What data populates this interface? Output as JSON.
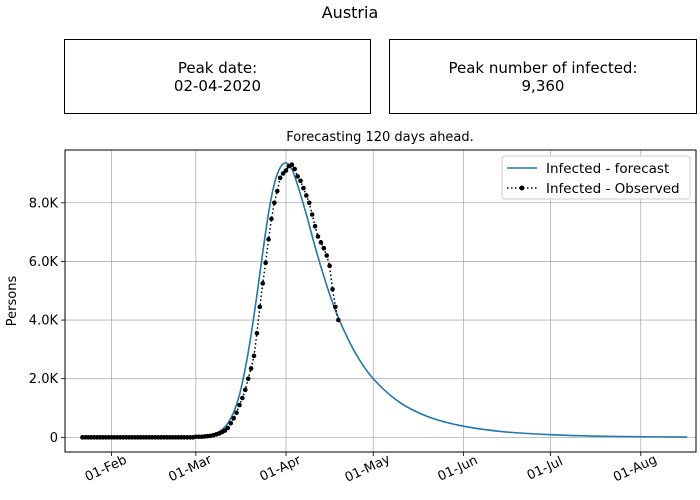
{
  "figure": {
    "title": "Austria",
    "peak_date_label": "Peak date:",
    "peak_date_value": "02-04-2020",
    "peak_infected_label": "Peak number of infected:",
    "peak_infected_value": "9,360"
  },
  "chart_data": {
    "type": "line",
    "title": "Forecasting 120 days ahead.",
    "xlabel": "",
    "ylabel": "Persons",
    "x_type": "date",
    "xlim": [
      "2020-01-16",
      "2020-08-20"
    ],
    "ylim": [
      -500,
      9800
    ],
    "grid": true,
    "legend_position": "top-right",
    "x_ticks": [
      {
        "date": "2020-02-01",
        "label": "01-Feb"
      },
      {
        "date": "2020-03-01",
        "label": "01-Mar"
      },
      {
        "date": "2020-04-01",
        "label": "01-Apr"
      },
      {
        "date": "2020-05-01",
        "label": "01-May"
      },
      {
        "date": "2020-06-01",
        "label": "01-Jun"
      },
      {
        "date": "2020-07-01",
        "label": "01-Jul"
      },
      {
        "date": "2020-08-01",
        "label": "01-Aug"
      }
    ],
    "y_ticks": [
      {
        "value": 0,
        "label": "0"
      },
      {
        "value": 2000,
        "label": "2.0K"
      },
      {
        "value": 4000,
        "label": "4.0K"
      },
      {
        "value": 6000,
        "label": "6.0K"
      },
      {
        "value": 8000,
        "label": "8.0K"
      }
    ],
    "series": [
      {
        "name": "Infected - forecast",
        "color": "#1f77b4",
        "style": "solid",
        "points": [
          [
            "2020-01-22",
            0
          ],
          [
            "2020-02-15",
            0
          ],
          [
            "2020-02-25",
            5
          ],
          [
            "2020-03-01",
            20
          ],
          [
            "2020-03-05",
            60
          ],
          [
            "2020-03-08",
            140
          ],
          [
            "2020-03-10",
            260
          ],
          [
            "2020-03-12",
            480
          ],
          [
            "2020-03-14",
            850
          ],
          [
            "2020-03-16",
            1450
          ],
          [
            "2020-03-18",
            2350
          ],
          [
            "2020-03-20",
            3500
          ],
          [
            "2020-03-22",
            4850
          ],
          [
            "2020-03-24",
            6300
          ],
          [
            "2020-03-26",
            7650
          ],
          [
            "2020-03-28",
            8650
          ],
          [
            "2020-03-30",
            9200
          ],
          [
            "2020-04-01",
            9360
          ],
          [
            "2020-04-03",
            9150
          ],
          [
            "2020-04-05",
            8600
          ],
          [
            "2020-04-08",
            7600
          ],
          [
            "2020-04-11",
            6500
          ],
          [
            "2020-04-14",
            5500
          ],
          [
            "2020-04-17",
            4600
          ],
          [
            "2020-04-20",
            3850
          ],
          [
            "2020-04-25",
            2850
          ],
          [
            "2020-05-01",
            2000
          ],
          [
            "2020-05-10",
            1200
          ],
          [
            "2020-05-20",
            700
          ],
          [
            "2020-06-01",
            380
          ],
          [
            "2020-06-15",
            190
          ],
          [
            "2020-07-01",
            90
          ],
          [
            "2020-07-15",
            45
          ],
          [
            "2020-08-01",
            20
          ],
          [
            "2020-08-17",
            10
          ]
        ]
      },
      {
        "name": "Infected - Observed",
        "color": "#000000",
        "style": "dotted",
        "marker": "circle",
        "points": [
          [
            "2020-01-22",
            0
          ],
          [
            "2020-01-23",
            0
          ],
          [
            "2020-01-24",
            0
          ],
          [
            "2020-01-25",
            0
          ],
          [
            "2020-01-26",
            0
          ],
          [
            "2020-01-27",
            0
          ],
          [
            "2020-01-28",
            0
          ],
          [
            "2020-01-29",
            0
          ],
          [
            "2020-01-30",
            0
          ],
          [
            "2020-01-31",
            0
          ],
          [
            "2020-02-01",
            0
          ],
          [
            "2020-02-02",
            0
          ],
          [
            "2020-02-03",
            0
          ],
          [
            "2020-02-04",
            0
          ],
          [
            "2020-02-05",
            0
          ],
          [
            "2020-02-06",
            0
          ],
          [
            "2020-02-07",
            0
          ],
          [
            "2020-02-08",
            0
          ],
          [
            "2020-02-09",
            0
          ],
          [
            "2020-02-10",
            0
          ],
          [
            "2020-02-11",
            0
          ],
          [
            "2020-02-12",
            0
          ],
          [
            "2020-02-13",
            0
          ],
          [
            "2020-02-14",
            0
          ],
          [
            "2020-02-15",
            0
          ],
          [
            "2020-02-16",
            0
          ],
          [
            "2020-02-17",
            0
          ],
          [
            "2020-02-18",
            0
          ],
          [
            "2020-02-19",
            0
          ],
          [
            "2020-02-20",
            0
          ],
          [
            "2020-02-21",
            0
          ],
          [
            "2020-02-22",
            0
          ],
          [
            "2020-02-23",
            0
          ],
          [
            "2020-02-24",
            0
          ],
          [
            "2020-02-25",
            0
          ],
          [
            "2020-02-26",
            0
          ],
          [
            "2020-02-27",
            0
          ],
          [
            "2020-02-28",
            0
          ],
          [
            "2020-02-29",
            0
          ],
          [
            "2020-03-01",
            20
          ],
          [
            "2020-03-02",
            20
          ],
          [
            "2020-03-03",
            20
          ],
          [
            "2020-03-04",
            30
          ],
          [
            "2020-03-05",
            40
          ],
          [
            "2020-03-06",
            50
          ],
          [
            "2020-03-07",
            70
          ],
          [
            "2020-03-08",
            100
          ],
          [
            "2020-03-09",
            130
          ],
          [
            "2020-03-10",
            180
          ],
          [
            "2020-03-11",
            230
          ],
          [
            "2020-03-12",
            320
          ],
          [
            "2020-03-13",
            480
          ],
          [
            "2020-03-14",
            650
          ],
          [
            "2020-03-15",
            840
          ],
          [
            "2020-03-16",
            1100
          ],
          [
            "2020-03-17",
            1340
          ],
          [
            "2020-03-18",
            1620
          ],
          [
            "2020-03-19",
            2000
          ],
          [
            "2020-03-20",
            2350
          ],
          [
            "2020-03-21",
            2780
          ],
          [
            "2020-03-22",
            3550
          ],
          [
            "2020-03-23",
            4450
          ],
          [
            "2020-03-24",
            5250
          ],
          [
            "2020-03-25",
            5950
          ],
          [
            "2020-03-26",
            6750
          ],
          [
            "2020-03-27",
            7450
          ],
          [
            "2020-03-28",
            8000
          ],
          [
            "2020-03-29",
            8400
          ],
          [
            "2020-03-30",
            8850
          ],
          [
            "2020-03-31",
            9000
          ],
          [
            "2020-04-01",
            9100
          ],
          [
            "2020-04-02",
            9250
          ],
          [
            "2020-04-03",
            9300
          ],
          [
            "2020-04-04",
            9150
          ],
          [
            "2020-04-05",
            8900
          ],
          [
            "2020-04-06",
            8750
          ],
          [
            "2020-04-07",
            8500
          ],
          [
            "2020-04-08",
            8250
          ],
          [
            "2020-04-09",
            8000
          ],
          [
            "2020-04-10",
            7600
          ],
          [
            "2020-04-11",
            7200
          ],
          [
            "2020-04-12",
            6850
          ],
          [
            "2020-04-13",
            6650
          ],
          [
            "2020-04-14",
            6450
          ],
          [
            "2020-04-15",
            6200
          ],
          [
            "2020-04-16",
            5850
          ],
          [
            "2020-04-17",
            5050
          ],
          [
            "2020-04-18",
            4450
          ],
          [
            "2020-04-19",
            4000
          ]
        ]
      }
    ]
  }
}
